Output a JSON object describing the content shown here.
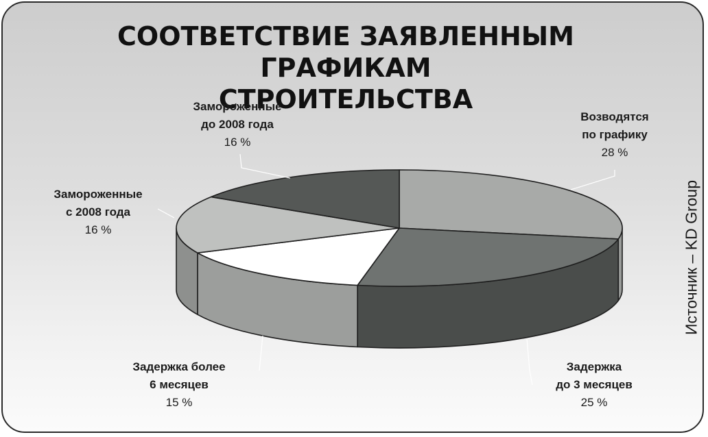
{
  "title_lines": [
    "СООТВЕТСТВИЕ ЗАЯВЛЕННЫМ ГРАФИКАМ",
    "СТРОИТЕЛЬСТВА"
  ],
  "source": "Источник – KD Group",
  "colors": {
    "on_schedule": "#a8aaa8",
    "delay_3m": "#6f7371",
    "delay_6m": "#ffffff",
    "frozen_since_2008": "#bfc1bf",
    "frozen_before_2008": "#555856"
  },
  "chart_data": {
    "type": "pie",
    "title": "СООТВЕТСТВИЕ ЗАЯВЛЕННЫМ ГРАФИКАМ СТРОИТЕЛЬСТВА",
    "slices": [
      {
        "label_lines": [
          "Возводятся",
          "по графику"
        ],
        "value": 28,
        "value_label": "28 %",
        "color": "#a8aaa8",
        "side_color": "#9a9c9a"
      },
      {
        "label_lines": [
          "Задержка",
          "до 3 месяцев"
        ],
        "value": 25,
        "value_label": "25 %",
        "color": "#6f7371",
        "side_color": "#4a4d4b"
      },
      {
        "label_lines": [
          "Задержка более",
          "6 месяцев"
        ],
        "value": 15,
        "value_label": "15 %",
        "color": "#ffffff",
        "side_color": "#9c9e9c"
      },
      {
        "label_lines": [
          "Замороженные",
          "с 2008 года"
        ],
        "value": 16,
        "value_label": "16 %",
        "color": "#bfc1bf",
        "side_color": "#8e908e"
      },
      {
        "label_lines": [
          "Замороженные",
          "до 2008 года"
        ],
        "value": 16,
        "value_label": "16 %",
        "color": "#555856",
        "side_color": "#3e403f"
      }
    ]
  }
}
